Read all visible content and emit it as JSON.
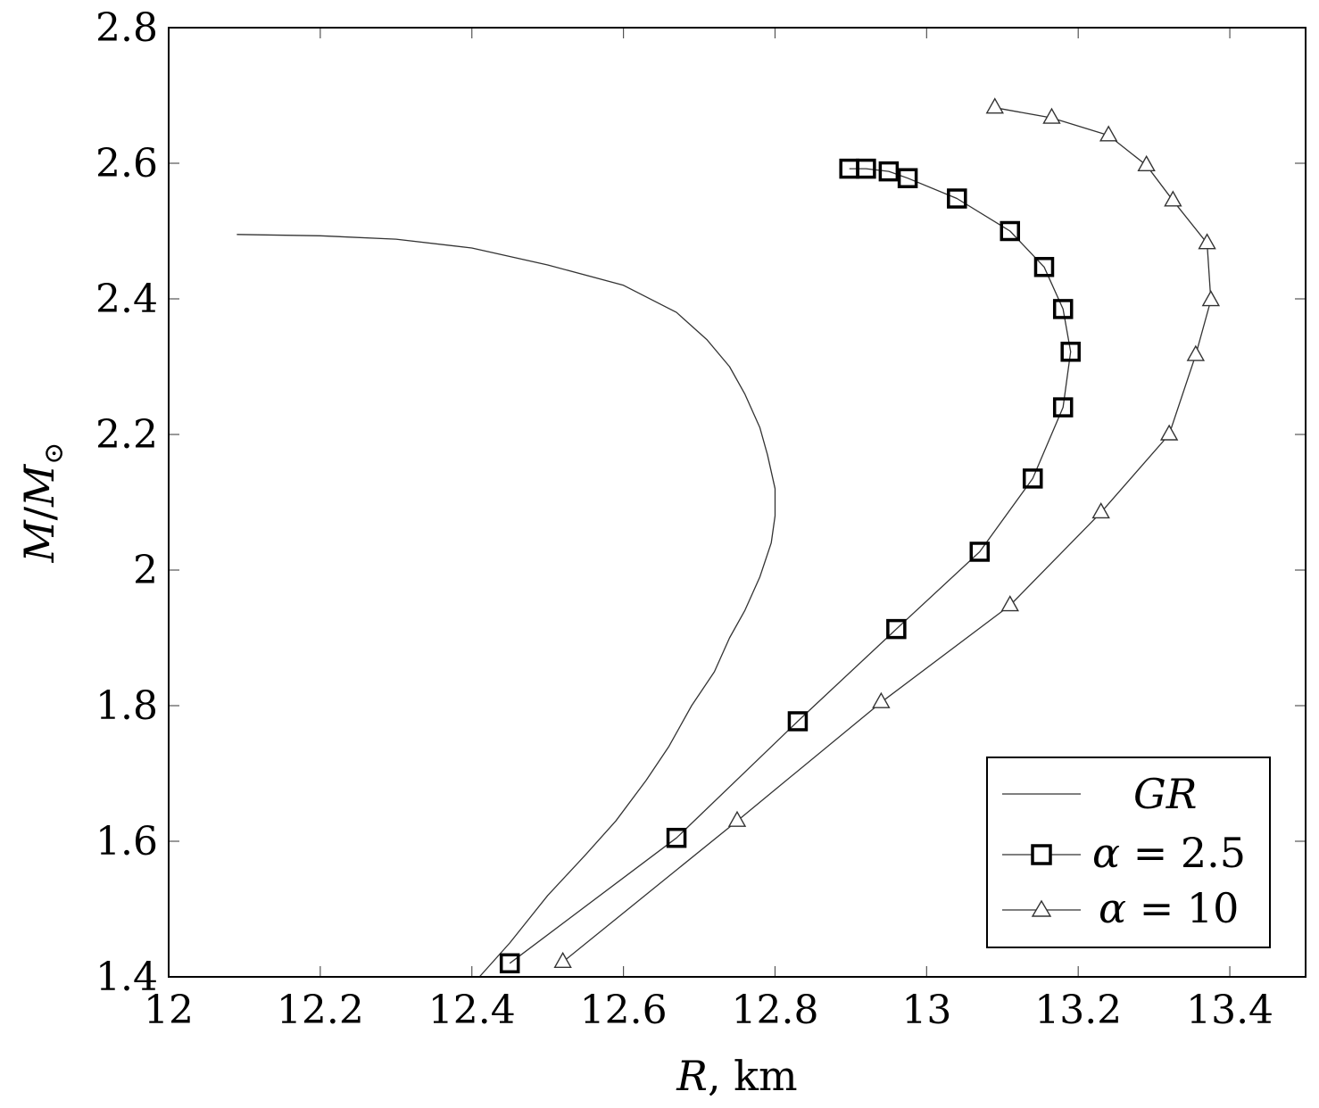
{
  "chart_data": {
    "type": "line",
    "title": "",
    "xlabel": "R, km",
    "xlabel_var": "R",
    "xlabel_unit": ", km",
    "ylabel": "M/M⊙",
    "ylabel_parts": {
      "m": "M",
      "slash": "/",
      "msun": "M",
      "sun_sub": "⊙"
    },
    "xlim": [
      12,
      13.5
    ],
    "ylim": [
      1.4,
      2.8
    ],
    "xticks": [
      12,
      12.2,
      12.4,
      12.6,
      12.8,
      13,
      13.2,
      13.4
    ],
    "xtick_labels": [
      "12",
      "12.2",
      "12.4",
      "12.6",
      "12.8",
      "13",
      "13.2",
      "13.4"
    ],
    "yticks": [
      1.4,
      1.6,
      1.8,
      2.0,
      2.2,
      2.4,
      2.6,
      2.8
    ],
    "ytick_labels": [
      "1.4",
      "1.6",
      "1.8",
      "2",
      "2.2",
      "2.4",
      "2.6",
      "2.8"
    ],
    "grid": false,
    "legend_position": "bottom-right",
    "series": [
      {
        "name": "GR",
        "legend_parts": {
          "text": "GR"
        },
        "marker": "none",
        "points": [
          [
            12.41,
            1.4
          ],
          [
            12.45,
            1.45
          ],
          [
            12.5,
            1.52
          ],
          [
            12.55,
            1.58
          ],
          [
            12.59,
            1.63
          ],
          [
            12.63,
            1.69
          ],
          [
            12.66,
            1.74
          ],
          [
            12.69,
            1.8
          ],
          [
            12.72,
            1.85
          ],
          [
            12.74,
            1.9
          ],
          [
            12.76,
            1.94
          ],
          [
            12.78,
            1.99
          ],
          [
            12.795,
            2.04
          ],
          [
            12.8,
            2.08
          ],
          [
            12.8,
            2.12
          ],
          [
            12.79,
            2.17
          ],
          [
            12.78,
            2.21
          ],
          [
            12.76,
            2.26
          ],
          [
            12.74,
            2.3
          ],
          [
            12.71,
            2.34
          ],
          [
            12.67,
            2.38
          ],
          [
            12.6,
            2.42
          ],
          [
            12.5,
            2.45
          ],
          [
            12.4,
            2.475
          ],
          [
            12.3,
            2.488
          ],
          [
            12.2,
            2.493
          ],
          [
            12.09,
            2.495
          ]
        ]
      },
      {
        "name": "α = 2.5",
        "legend_parts": {
          "alpha": "α",
          "eq": " = ",
          "value": "2.5"
        },
        "marker": "square",
        "points": [
          [
            12.45,
            1.42
          ],
          [
            12.67,
            1.605
          ],
          [
            12.83,
            1.777
          ],
          [
            12.96,
            1.913
          ],
          [
            13.07,
            2.027
          ],
          [
            13.14,
            2.135
          ],
          [
            13.18,
            2.24
          ],
          [
            13.19,
            2.322
          ],
          [
            13.18,
            2.385
          ],
          [
            13.155,
            2.447
          ],
          [
            13.11,
            2.5
          ],
          [
            13.04,
            2.548
          ],
          [
            12.975,
            2.578
          ],
          [
            12.95,
            2.588
          ],
          [
            12.92,
            2.592
          ],
          [
            12.898,
            2.592
          ]
        ]
      },
      {
        "name": "α = 10",
        "legend_parts": {
          "alpha": "α",
          "eq": " = ",
          "value": "10"
        },
        "marker": "triangle",
        "points": [
          [
            12.52,
            1.422
          ],
          [
            12.75,
            1.63
          ],
          [
            12.94,
            1.805
          ],
          [
            13.11,
            1.948
          ],
          [
            13.23,
            2.085
          ],
          [
            13.32,
            2.2
          ],
          [
            13.355,
            2.317
          ],
          [
            13.375,
            2.398
          ],
          [
            13.37,
            2.482
          ],
          [
            13.325,
            2.545
          ],
          [
            13.29,
            2.597
          ],
          [
            13.24,
            2.641
          ],
          [
            13.165,
            2.667
          ],
          [
            13.09,
            2.682
          ]
        ]
      }
    ]
  }
}
